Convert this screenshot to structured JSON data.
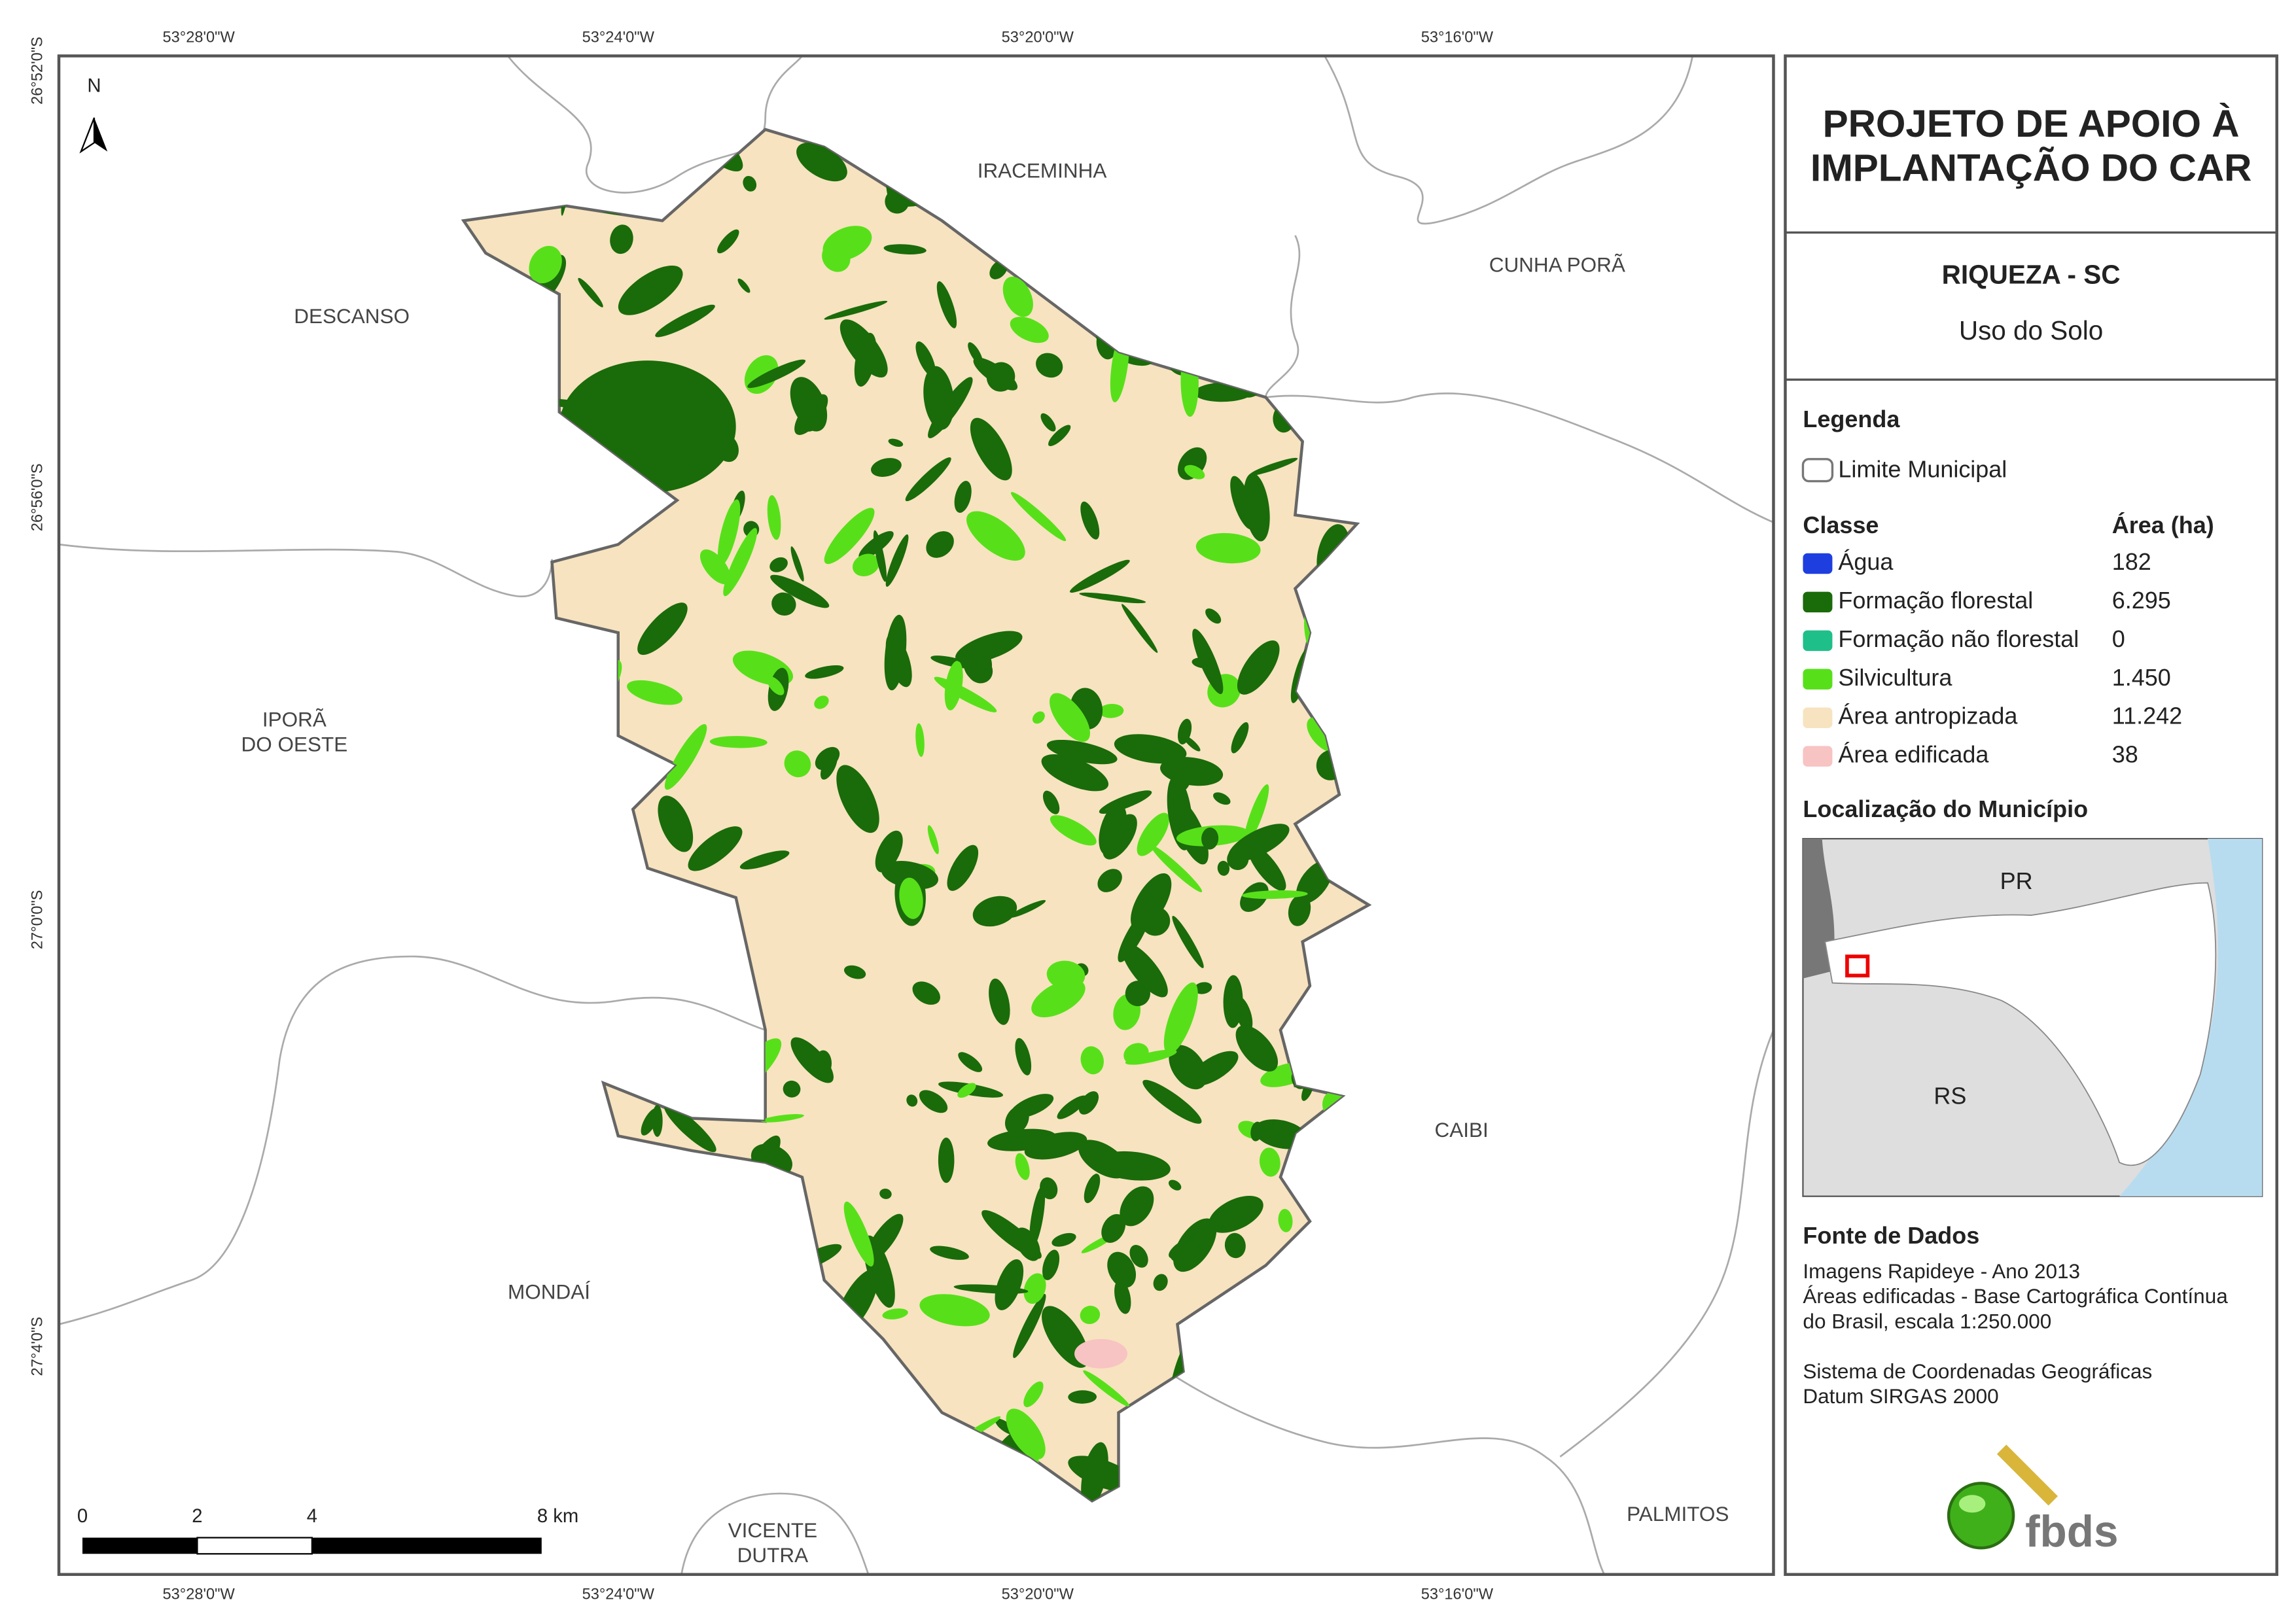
{
  "map": {
    "coordinates": {
      "top": [
        "53°28'0\"W",
        "53°24'0\"W",
        "53°20'0\"W",
        "53°16'0\"W"
      ],
      "bottom": [
        "53°28'0\"W",
        "53°24'0\"W",
        "53°20'0\"W",
        "53°16'0\"W"
      ],
      "left": [
        "26°52'0\"S",
        "26°56'0\"S",
        "27°0'0\"S",
        "27°4'0\"S"
      ]
    },
    "north": "N",
    "places": [
      "IRACEMINHA",
      "CUNHA PORÃ",
      "DESCANSO",
      "IPORÃ",
      "DO OESTE",
      "CAIBI",
      "MONDAÍ",
      "VICENTE",
      "DUTRA",
      "PALMITOS"
    ],
    "scale_bar": [
      "0",
      "2",
      "4",
      "8 km"
    ]
  },
  "panel": {
    "title": [
      "PROJETO DE APOIO À",
      "IMPLANTAÇÃO DO CAR"
    ],
    "municipality": "RIQUEZA - SC",
    "theme": "Uso do Solo",
    "legend": {
      "title": "Legenda",
      "boundary": "Limite Municipal",
      "header": [
        "Classe",
        "Área (ha)"
      ],
      "rows": [
        {
          "name": "Água",
          "area": "182",
          "color": "#1f3ee0"
        },
        {
          "name": "Formação florestal",
          "area": "6.295",
          "color": "#1a6b0a"
        },
        {
          "name": "Formação não florestal",
          "area": "0",
          "color": "#1fbf8a"
        },
        {
          "name": "Silvicultura",
          "area": "1.450",
          "color": "#57e01a"
        },
        {
          "name": "Área antropizada",
          "area": "11.242",
          "color": "#f7e3bf"
        },
        {
          "name": "Área edificada",
          "area": "38",
          "color": "#f8c3c3"
        }
      ]
    },
    "locator": {
      "title": "Localização do Município",
      "labels": [
        "PR",
        "RS"
      ]
    },
    "source": {
      "title": "Fonte de Dados",
      "lines": [
        "Imagens Rapideye - Ano 2013",
        "Áreas edificadas - Base Cartográfica Contínua",
        "do Brasil, escala 1:250.000",
        "Sistema de Coordenadas Geográficas",
        "Datum SIRGAS 2000"
      ]
    },
    "logo": "fbds"
  }
}
